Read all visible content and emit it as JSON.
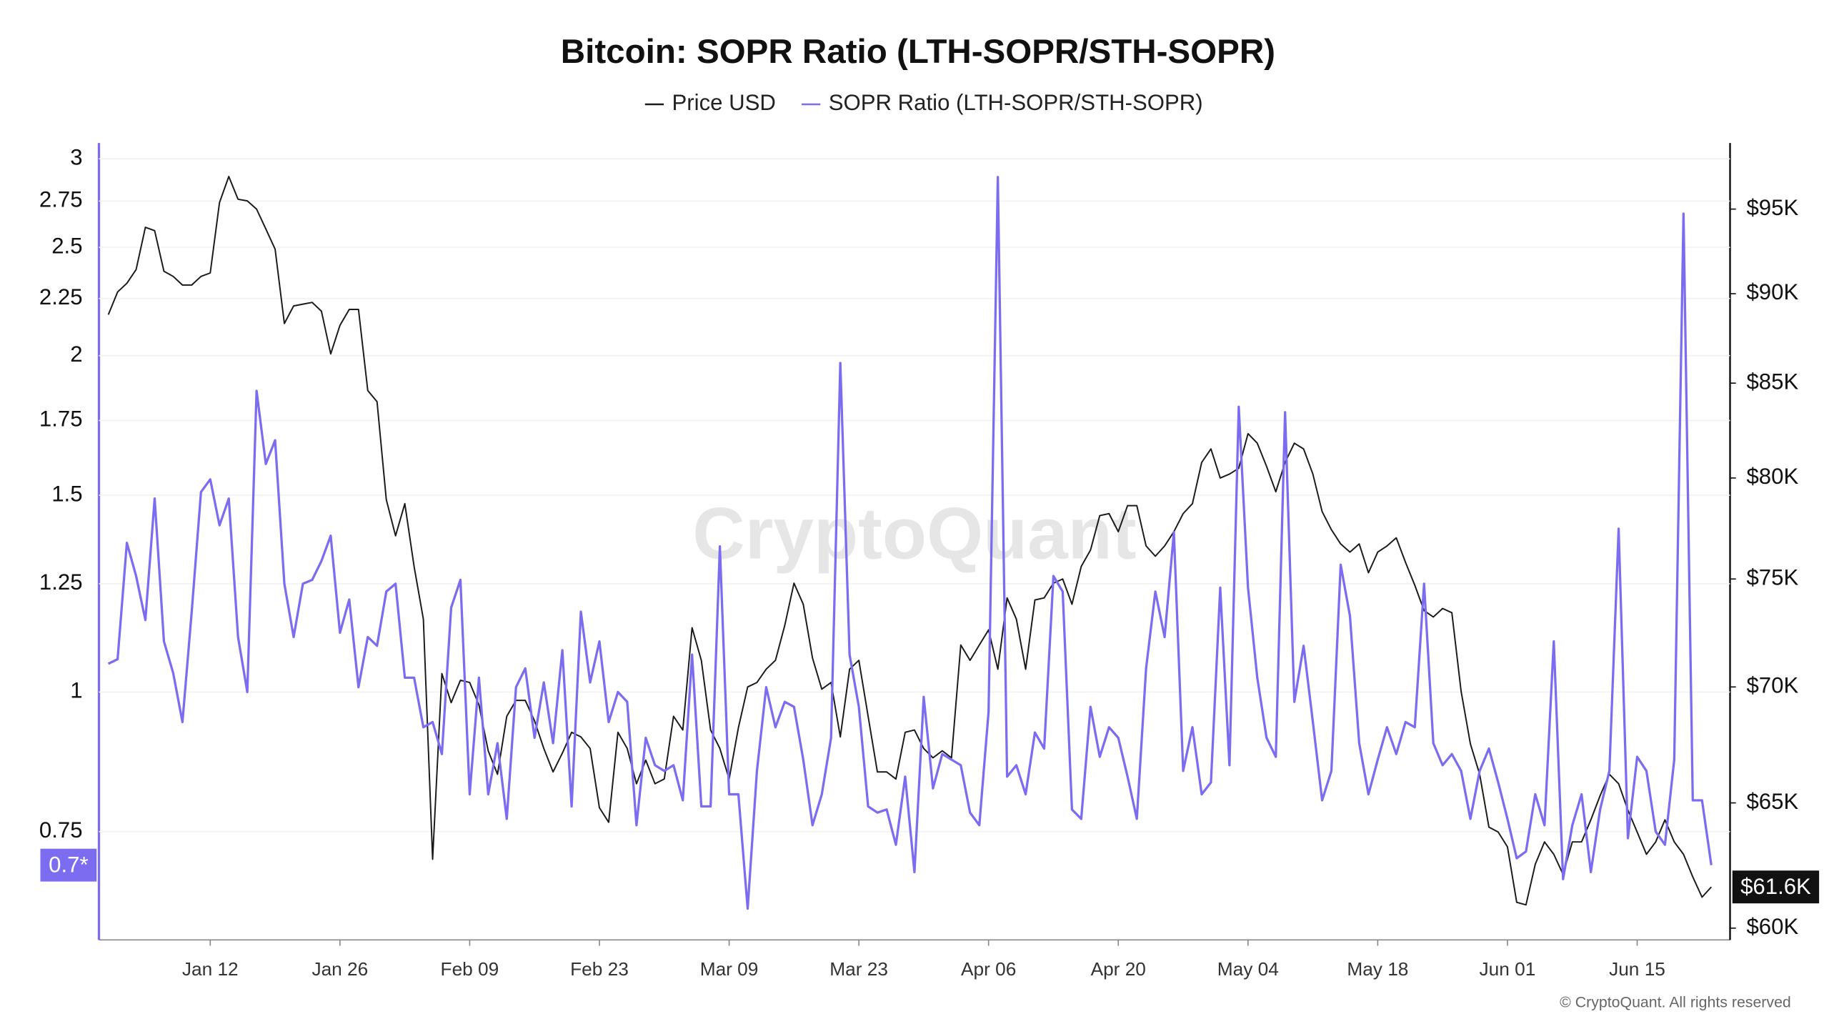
{
  "chart_data": {
    "type": "line",
    "title": "Bitcoin: SOPR Ratio (LTH-SOPR/STH-SOPR)",
    "watermark": "CryptoQuant",
    "credit": "© CryptoQuant. All rights reserved",
    "categories": [
      null,
      null,
      null,
      null,
      null,
      null,
      null,
      null,
      null,
      null,
      null,
      "Jan 12",
      null,
      null,
      null,
      null,
      null,
      null,
      null,
      null,
      null,
      null,
      null,
      null,
      null,
      "Jan 26",
      null,
      null,
      null,
      null,
      null,
      null,
      null,
      null,
      null,
      null,
      null,
      null,
      null,
      "Feb 09",
      null,
      null,
      null,
      null,
      null,
      null,
      null,
      null,
      null,
      null,
      null,
      null,
      null,
      "Feb 23",
      null,
      null,
      null,
      null,
      null,
      null,
      null,
      null,
      null,
      null,
      null,
      null,
      null,
      "Mar 09",
      null,
      null,
      null,
      null,
      null,
      null,
      null,
      null,
      null,
      null,
      null,
      null,
      null,
      "Mar 23",
      null,
      null,
      null,
      null,
      null,
      null,
      null,
      null,
      null,
      null,
      null,
      null,
      null,
      "Apr 06",
      null,
      null,
      null,
      null,
      null,
      null,
      null,
      null,
      null,
      null,
      null,
      null,
      null,
      "Apr 20",
      null,
      null,
      null,
      null,
      null,
      null,
      null,
      null,
      null,
      null,
      null,
      null,
      null,
      "May 04",
      null,
      null,
      null,
      null,
      null,
      null,
      null,
      null,
      null,
      null,
      null,
      null,
      null,
      "May 18",
      null,
      null,
      null,
      null,
      null,
      null,
      null,
      null,
      null,
      null,
      null,
      null,
      null,
      "Jun 01",
      null,
      null,
      null,
      null,
      null,
      null,
      null,
      null,
      null,
      null,
      null,
      null,
      null,
      "Jun 15",
      null,
      null,
      null,
      null,
      null,
      null,
      null,
      null
    ],
    "log_scale": true,
    "grid": true,
    "ylim": [
      0.6,
      3.1
    ],
    "yticks": [
      0.75,
      1,
      1.25,
      1.5,
      1.75,
      2,
      2.25,
      2.5,
      2.75,
      3
    ],
    "y2lim": [
      59550,
      99100
    ],
    "y2ticks": [
      {
        "value": 60000,
        "label": "$60K"
      },
      {
        "value": 65000,
        "label": "$65K"
      },
      {
        "value": 70000,
        "label": "$70K"
      },
      {
        "value": 75000,
        "label": "$75K"
      },
      {
        "value": 80000,
        "label": "$80K"
      },
      {
        "value": 85000,
        "label": "$85K"
      },
      {
        "value": 90000,
        "label": "$90K"
      },
      {
        "value": 95000,
        "label": "$95K"
      }
    ],
    "series": [
      {
        "name": "Price USD",
        "color": "#1a1a1a",
        "axis": "y2",
        "current_label": {
          "value": 61600,
          "label": "$61.6K"
        },
        "values": [
          88800,
          90100,
          90600,
          91400,
          93900,
          93700,
          91300,
          91000,
          90500,
          90500,
          91000,
          91200,
          95400,
          97000,
          95600,
          95500,
          95000,
          93800,
          92600,
          88300,
          89300,
          89400,
          89500,
          89000,
          86600,
          88200,
          89100,
          89100,
          84600,
          84000,
          78900,
          77100,
          78700,
          75600,
          73100,
          62700,
          70600,
          69300,
          70300,
          70200,
          69200,
          67200,
          66200,
          68700,
          69400,
          69400,
          68500,
          67300,
          66300,
          67100,
          68000,
          67800,
          67300,
          64800,
          64200,
          68000,
          67300,
          65800,
          66800,
          65800,
          66000,
          68700,
          68100,
          72700,
          71200,
          68100,
          67300,
          66000,
          68200,
          70000,
          70200,
          70800,
          71200,
          72800,
          74800,
          73800,
          71300,
          69900,
          70200,
          67800,
          70800,
          71200,
          68700,
          66300,
          66300,
          66000,
          68000,
          68100,
          67300,
          66900,
          67200,
          66900,
          71900,
          71200,
          71900,
          72600,
          70800,
          74100,
          73100,
          70800,
          74000,
          74100,
          74800,
          75000,
          73800,
          75600,
          76400,
          78100,
          78200,
          77300,
          78600,
          78600,
          76600,
          76100,
          76600,
          77300,
          78200,
          78700,
          80800,
          81500,
          80000,
          80200,
          80500,
          82300,
          81800,
          80600,
          79300,
          80800,
          81800,
          81500,
          80200,
          78300,
          77400,
          76700,
          76300,
          76700,
          75300,
          76300,
          76600,
          77000,
          75800,
          74700,
          73500,
          73200,
          73600,
          73400,
          69800,
          67500,
          66200,
          64000,
          63800,
          63200,
          61000,
          60900,
          62500,
          63400,
          62900,
          62100,
          63400,
          63400,
          64300,
          65300,
          66200,
          65800,
          64700,
          63800,
          62900,
          63400,
          64300,
          63400,
          62900,
          62000,
          61200,
          61600
        ]
      },
      {
        "name": "SOPR Ratio (LTH-SOPR/STH-SOPR)",
        "color": "#7b6cf0",
        "current_label": {
          "value": 0.7,
          "label": "0.7*"
        },
        "values": [
          1.06,
          1.07,
          1.36,
          1.27,
          1.16,
          1.49,
          1.11,
          1.04,
          0.94,
          1.18,
          1.51,
          1.55,
          1.41,
          1.49,
          1.12,
          1.0,
          1.86,
          1.6,
          1.68,
          1.25,
          1.12,
          1.25,
          1.26,
          1.31,
          1.38,
          1.13,
          1.21,
          1.01,
          1.12,
          1.1,
          1.23,
          1.25,
          1.03,
          1.03,
          0.93,
          0.94,
          0.88,
          1.19,
          1.26,
          0.81,
          1.03,
          0.81,
          0.9,
          0.77,
          1.01,
          1.05,
          0.91,
          1.02,
          0.9,
          1.09,
          0.79,
          1.18,
          1.02,
          1.11,
          0.94,
          1.0,
          0.98,
          0.76,
          0.91,
          0.86,
          0.85,
          0.86,
          0.8,
          1.08,
          0.79,
          0.79,
          1.35,
          0.81,
          0.81,
          0.64,
          0.85,
          1.01,
          0.93,
          0.98,
          0.97,
          0.87,
          0.76,
          0.81,
          0.91,
          1.97,
          1.08,
          0.97,
          0.79,
          0.78,
          0.785,
          0.73,
          0.84,
          0.69,
          0.99,
          0.82,
          0.88,
          0.87,
          0.86,
          0.78,
          0.76,
          0.96,
          2.89,
          0.84,
          0.86,
          0.81,
          0.92,
          0.89,
          1.27,
          1.23,
          0.785,
          0.77,
          0.97,
          0.875,
          0.93,
          0.91,
          0.84,
          0.77,
          1.05,
          1.23,
          1.12,
          1.39,
          0.85,
          0.93,
          0.81,
          0.83,
          1.24,
          0.86,
          1.8,
          1.24,
          1.03,
          0.91,
          0.875,
          1.78,
          0.98,
          1.1,
          0.94,
          0.8,
          0.85,
          1.3,
          1.17,
          0.9,
          0.81,
          0.87,
          0.93,
          0.88,
          0.94,
          0.93,
          1.25,
          0.9,
          0.86,
          0.88,
          0.85,
          0.77,
          0.85,
          0.89,
          0.83,
          0.77,
          0.71,
          0.72,
          0.81,
          0.76,
          1.11,
          0.68,
          0.76,
          0.81,
          0.69,
          0.785,
          0.85,
          1.4,
          0.74,
          0.875,
          0.85,
          0.75,
          0.73,
          0.87,
          2.68,
          0.8,
          0.8,
          0.7
        ]
      }
    ]
  }
}
